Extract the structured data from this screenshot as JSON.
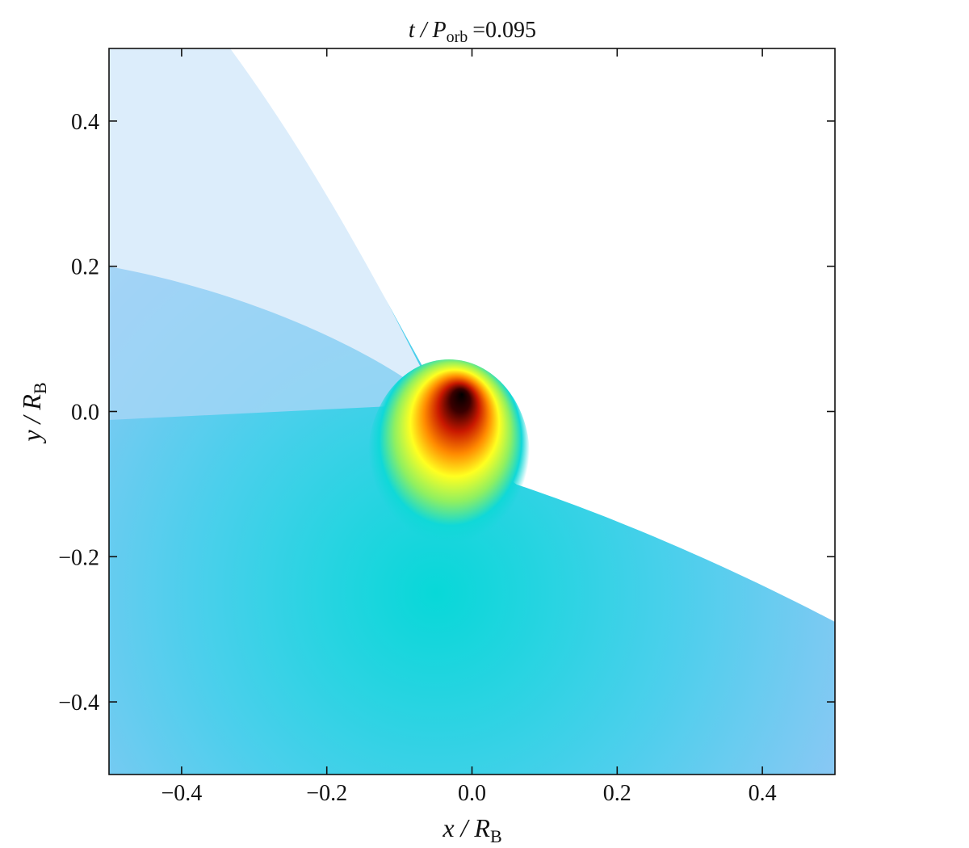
{
  "chart_data": {
    "type": "image",
    "title": {
      "text": "t / P",
      "subscript": "orb",
      "suffix": "=0.095"
    },
    "x_label": {
      "text": "x / R",
      "subscript": "B"
    },
    "y_label": {
      "text": "y / R",
      "subscript": "B"
    },
    "xlim": [
      -0.5,
      0.5
    ],
    "ylim": [
      -0.5,
      0.5
    ],
    "xticks": [
      {
        "value": -0.4,
        "label": "−0.4"
      },
      {
        "value": -0.2,
        "label": "−0.2"
      },
      {
        "value": 0,
        "label": "0.0"
      },
      0.2,
      0.4
    ],
    "yticks": [
      {
        "value": -0.4,
        "label": "−0.4"
      },
      {
        "value": -0.2,
        "label": "−0.2"
      },
      {
        "value": 0,
        "label": "0.0"
      },
      0.2,
      0.4
    ]
  }
}
